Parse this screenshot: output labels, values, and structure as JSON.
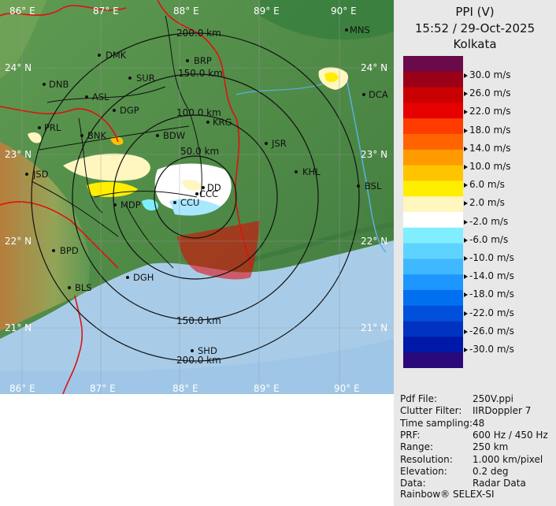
{
  "header": {
    "product": "PPI (V)",
    "datetime": "15:52 / 29-Oct-2025",
    "station": "Kolkata"
  },
  "legend": {
    "ticks": [
      "30.0 m/s",
      "26.0 m/s",
      "22.0 m/s",
      "18.0 m/s",
      "14.0 m/s",
      "10.0 m/s",
      "6.0 m/s",
      "2.0 m/s",
      "-2.0 m/s",
      "-6.0 m/s",
      "-10.0 m/s",
      "-14.0 m/s",
      "-18.0 m/s",
      "-22.0 m/s",
      "-26.0 m/s",
      "-30.0 m/s"
    ],
    "colors": [
      "#6a0a4a",
      "#9a0016",
      "#c80000",
      "#e60000",
      "#ff3c00",
      "#ff6400",
      "#ff9a00",
      "#ffc400",
      "#ffee00",
      "#fff6c0",
      "#ffffff",
      "#80eeff",
      "#5fd3ff",
      "#40b8ff",
      "#1e96ff",
      "#0070f0",
      "#0050dc",
      "#0032c0",
      "#0018a8",
      "#2a0a7a"
    ]
  },
  "map": {
    "lon_labels": [
      "86° E",
      "87° E",
      "88° E",
      "89° E",
      "90° E"
    ],
    "lat_labels": [
      "24° N",
      "23° N",
      "22° N",
      "21° N"
    ],
    "ring_labels": [
      "50.0 km",
      "100.0 km",
      "150.0 km",
      "200.0 km"
    ],
    "cities": [
      {
        "code": "MNS"
      },
      {
        "code": "BRP"
      },
      {
        "code": "DMK"
      },
      {
        "code": "SUR"
      },
      {
        "code": "DNB"
      },
      {
        "code": "ASL"
      },
      {
        "code": "DCA"
      },
      {
        "code": "DGP"
      },
      {
        "code": "KRG"
      },
      {
        "code": "PRL"
      },
      {
        "code": "BNK"
      },
      {
        "code": "BDW"
      },
      {
        "code": "JSR"
      },
      {
        "code": "KHL"
      },
      {
        "code": "JSD"
      },
      {
        "code": "BSL"
      },
      {
        "code": "MDP"
      },
      {
        "code": "CCU"
      },
      {
        "code": "BPD"
      },
      {
        "code": "DGH"
      },
      {
        "code": "BLS"
      },
      {
        "code": "SHD"
      },
      {
        "code": "DD"
      },
      {
        "code": "CCC"
      }
    ]
  },
  "metadata": [
    {
      "key": "Pdf File:",
      "value": "250V.ppi"
    },
    {
      "key": "Clutter Filter:",
      "value": "IIRDoppler 7"
    },
    {
      "key": "Time sampling:",
      "value": "48"
    },
    {
      "key": "PRF:",
      "value": "600 Hz / 450 Hz"
    },
    {
      "key": "Range:",
      "value": "250 km"
    },
    {
      "key": "Resolution:",
      "value": "1.000 km/pixel"
    },
    {
      "key": "Elevation:",
      "value": "0.2 deg"
    },
    {
      "key": "Data:",
      "value": "Radar Data"
    }
  ],
  "footer": "Rainbow® SELEX-SI"
}
